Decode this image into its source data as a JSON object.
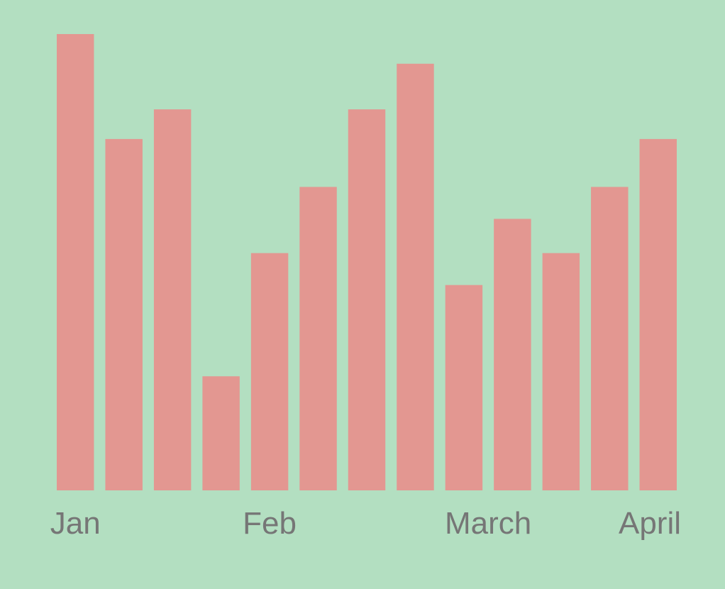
{
  "colors": {
    "background": "#b3dfc1",
    "bar": "#e39791",
    "tick_text": "#767676"
  },
  "chart_data": {
    "type": "bar",
    "title": "",
    "xlabel": "",
    "ylabel": "",
    "grid": false,
    "legend": "none",
    "y_axis_visible": false,
    "ylim": [
      0,
      100
    ],
    "x_tick_labels": [
      {
        "label": "Jan",
        "bar_index": 0
      },
      {
        "label": "Feb",
        "bar_index": 4
      },
      {
        "label": "March",
        "bar_index": 8.5
      },
      {
        "label": "April",
        "bar_index": 12
      }
    ],
    "series": [
      {
        "values": [
          100,
          77,
          83.5,
          25,
          52,
          66.5,
          83.5,
          93.5,
          45,
          59.5,
          52,
          66.5,
          77
        ]
      }
    ]
  }
}
